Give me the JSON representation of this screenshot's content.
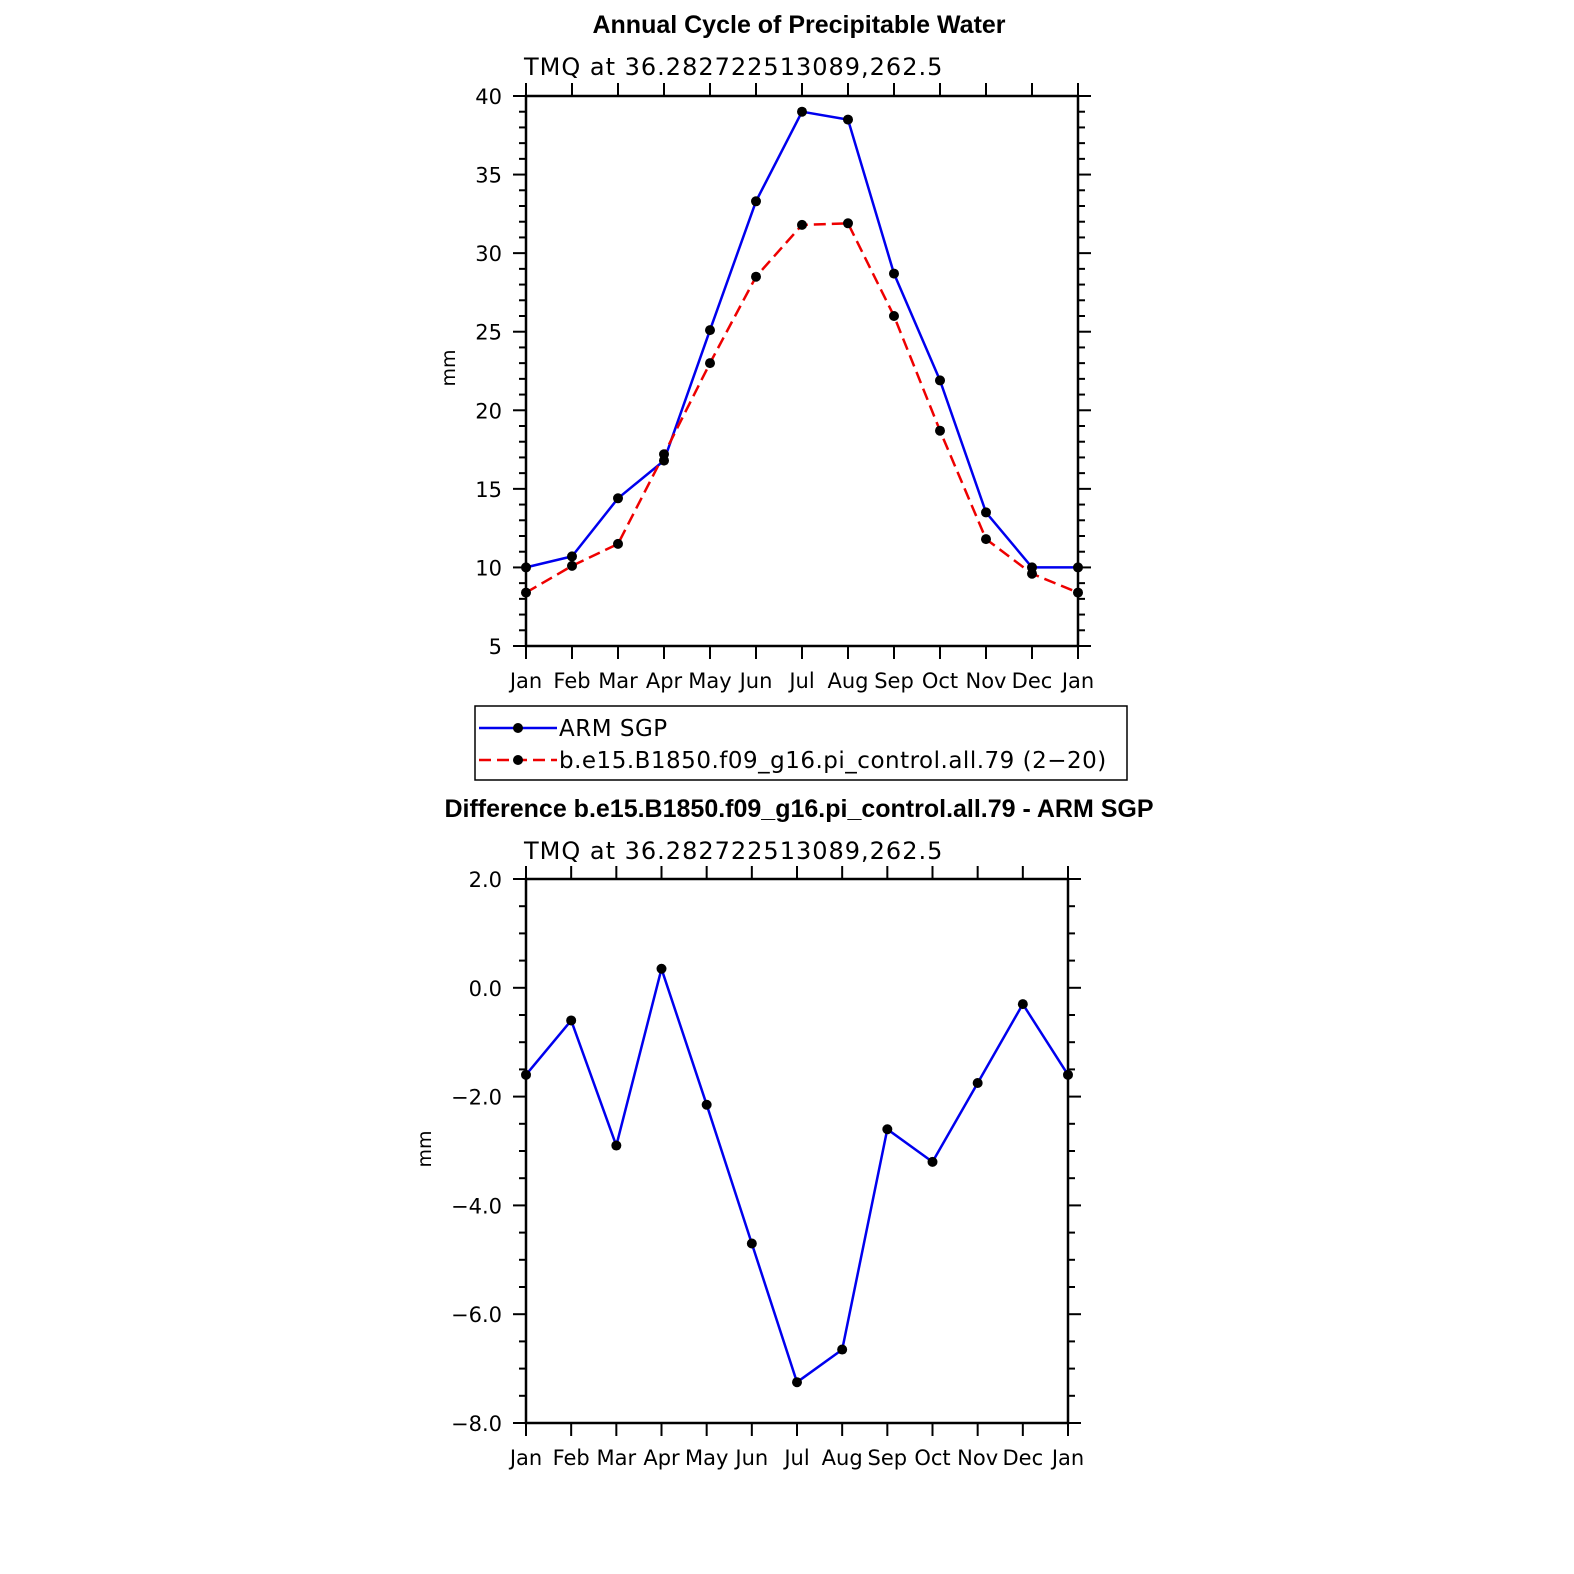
{
  "chart_data": [
    {
      "type": "line",
      "title": "Annual Cycle of Precipitable Water",
      "subtitle": "TMQ at 36.282722513089,262.5",
      "xlabel": "",
      "ylabel": "mm",
      "categories": [
        "Jan",
        "Feb",
        "Mar",
        "Apr",
        "May",
        "Jun",
        "Jul",
        "Aug",
        "Sep",
        "Oct",
        "Nov",
        "Dec",
        "Jan"
      ],
      "ylim": [
        5,
        40
      ],
      "yticks": [
        "5",
        "10",
        "15",
        "20",
        "25",
        "30",
        "35",
        "40"
      ],
      "ytick_values": [
        5,
        10,
        15,
        20,
        25,
        30,
        35,
        40
      ],
      "legend_placement": "below",
      "series": [
        {
          "name": "ARM SGP",
          "color": "#0000ee",
          "dash": "solid",
          "values": [
            10.0,
            10.7,
            14.4,
            16.8,
            25.1,
            33.3,
            39.0,
            38.5,
            28.7,
            21.9,
            13.5,
            10.0,
            10.0
          ]
        },
        {
          "name": "b.e15.B1850.f09_g16.pi_control.all.79 (2−20)",
          "color": "#ee0000",
          "dash": "dashed",
          "values": [
            8.4,
            10.1,
            11.5,
            17.2,
            23.0,
            28.5,
            31.8,
            31.9,
            26.0,
            18.7,
            11.8,
            9.6,
            8.4
          ]
        }
      ]
    },
    {
      "type": "line",
      "title": "Difference b.e15.B1850.f09_g16.pi_control.all.79 - ARM SGP",
      "subtitle": "TMQ at 36.282722513089,262.5",
      "xlabel": "",
      "ylabel": "mm",
      "categories": [
        "Jan",
        "Feb",
        "Mar",
        "Apr",
        "May",
        "Jun",
        "Jul",
        "Aug",
        "Sep",
        "Oct",
        "Nov",
        "Dec",
        "Jan"
      ],
      "ylim": [
        -8.0,
        2.0
      ],
      "yticks": [
        "−8.0",
        "−6.0",
        "−4.0",
        "−2.0",
        "0.0",
        "2.0"
      ],
      "ytick_values": [
        -8,
        -6,
        -4,
        -2,
        0,
        2
      ],
      "series": [
        {
          "color": "#0000ee",
          "dash": "solid",
          "values": [
            -1.6,
            -0.6,
            -2.9,
            0.35,
            -2.15,
            -4.7,
            -7.25,
            -6.65,
            -2.6,
            -3.2,
            -1.75,
            -0.3,
            -1.6
          ]
        }
      ]
    }
  ]
}
